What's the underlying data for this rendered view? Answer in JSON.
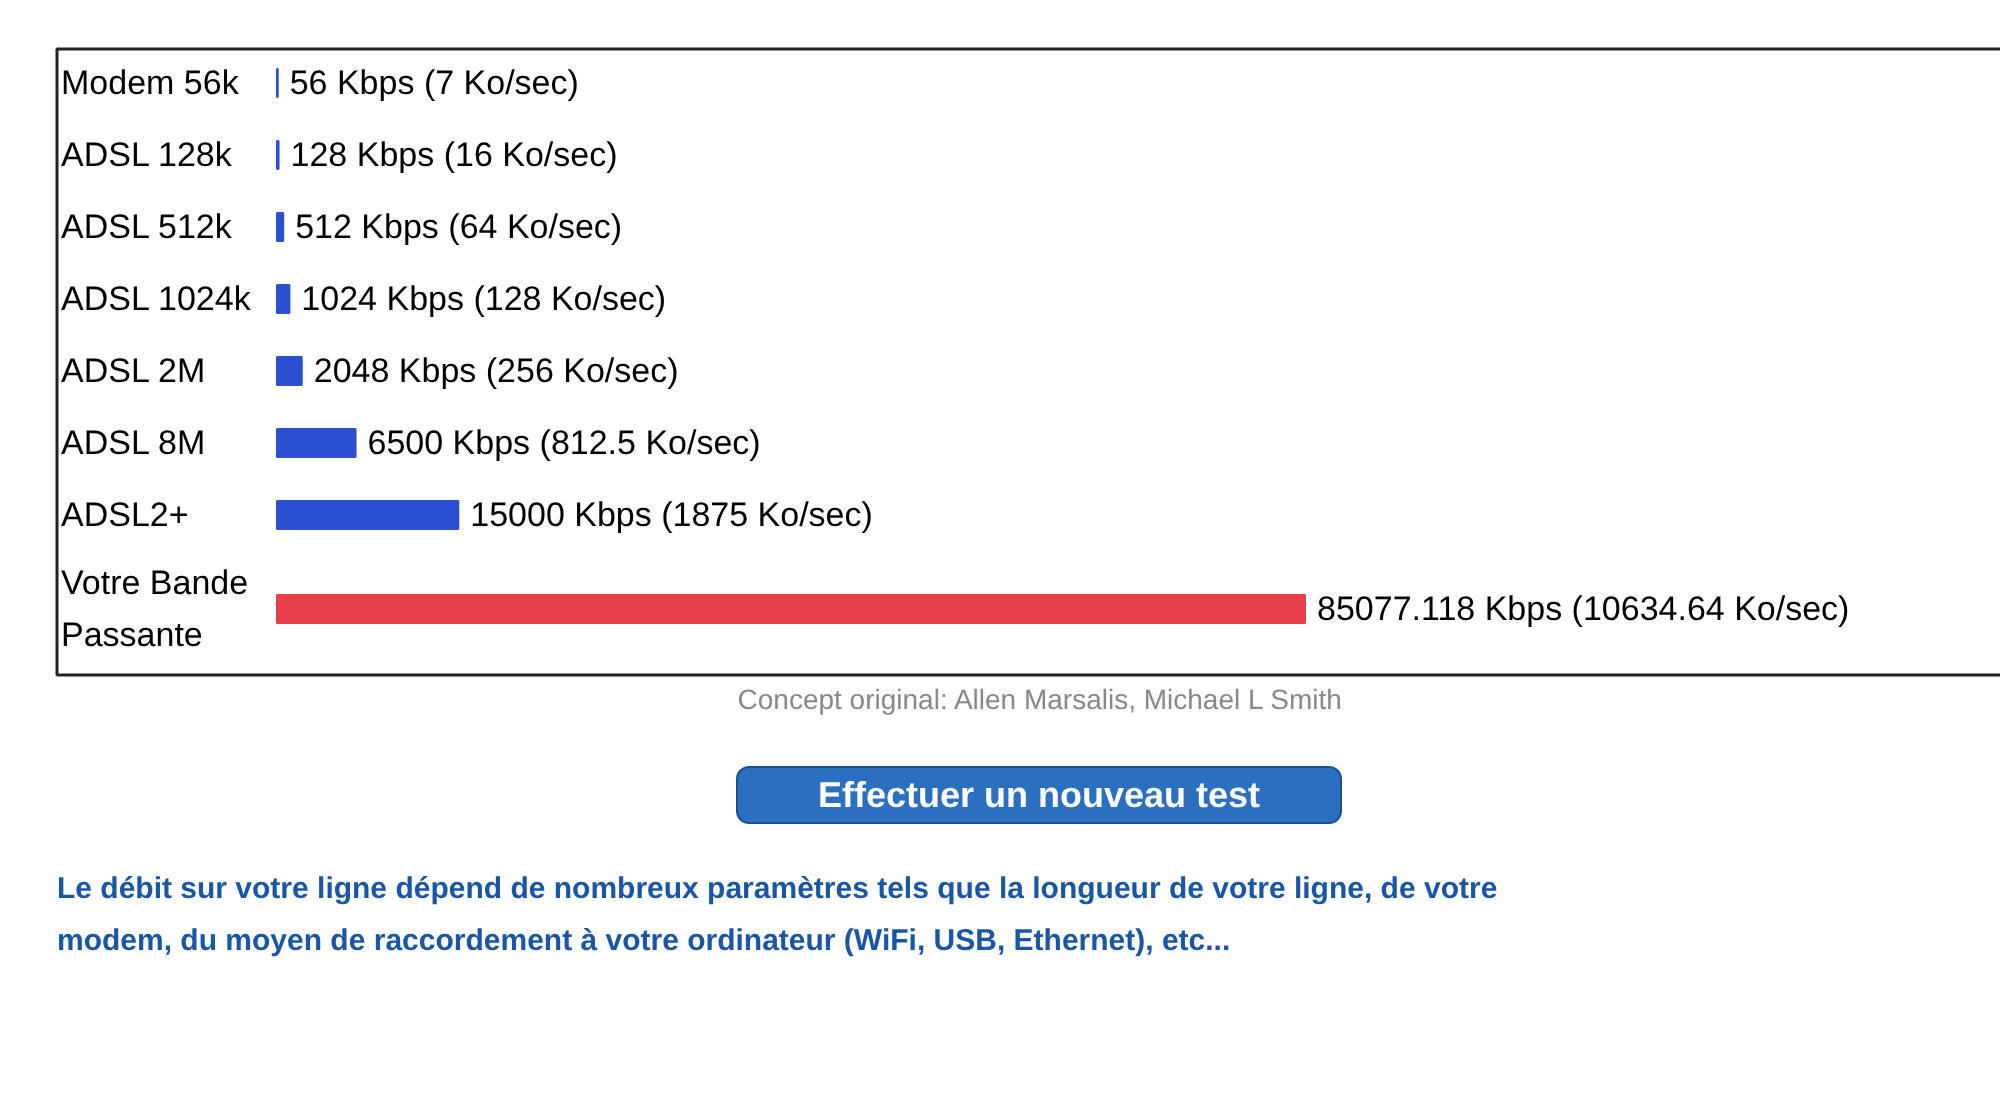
{
  "chart_data": {
    "type": "bar",
    "orientation": "horizontal",
    "categories": [
      "Modem 56k",
      "ADSL 128k",
      "ADSL 512k",
      "ADSL 1024k",
      "ADSL 2M",
      "ADSL 8M",
      "ADSL2+",
      "Votre Bande Passante"
    ],
    "values": [
      56,
      128,
      512,
      1024,
      2048,
      6500,
      15000,
      85077.118
    ],
    "colors": [
      "#2a4fd0",
      "#2a4fd0",
      "#2a4fd0",
      "#2a4fd0",
      "#2a4fd0",
      "#2a4fd0",
      "#2a4fd0",
      "#e8404a"
    ],
    "value_labels": [
      "56 Kbps (7 Ko/sec)",
      "128 Kbps (16 Ko/sec)",
      "512 Kbps (64 Ko/sec)",
      "1024 Kbps (128 Ko/sec)",
      "2048 Kbps (256 Ko/sec)",
      "6500 Kbps (812.5 Ko/sec)",
      "15000 Kbps (1875 Ko/sec)",
      "85077.118 Kbps (10634.64 Ko/sec)"
    ],
    "annotations": [
      "Concept original: Allen Marsalis, Michael L Smith",
      "Effectuer un nouveau test",
      "Le débit sur votre ligne dépend de nombreux paramètres tels que la longueur de votre ligne, de votre modem, du moyen de raccordement à votre ordinateur (WiFi, USB, Ethernet), etc..."
    ]
  }
}
